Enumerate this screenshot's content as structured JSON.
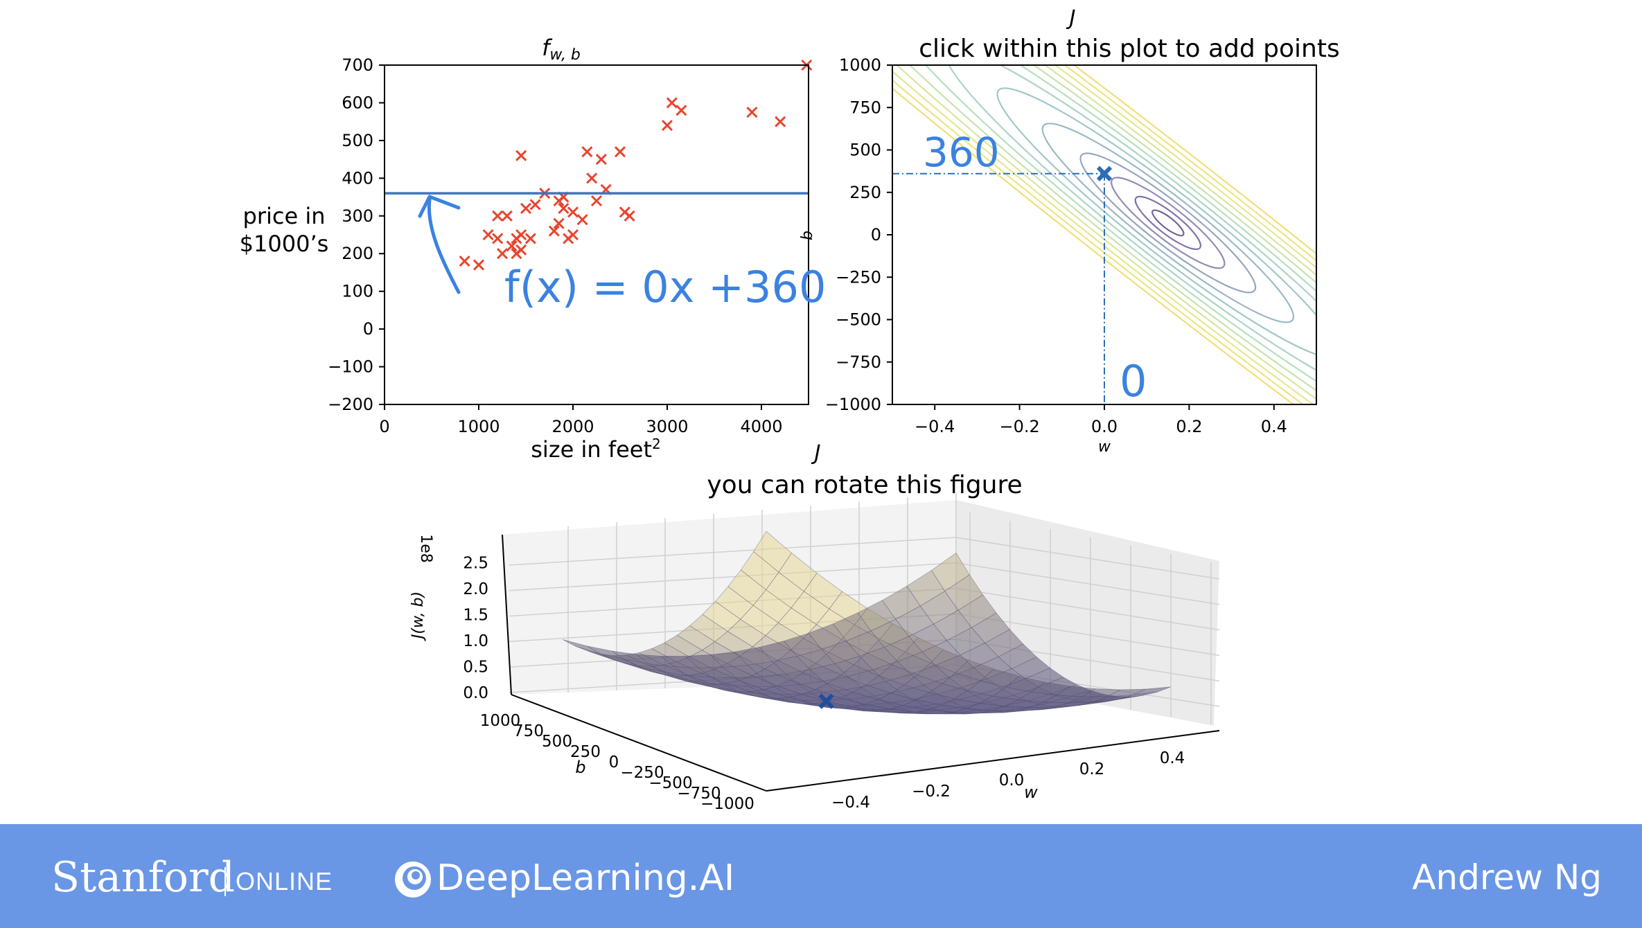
{
  "chart_data": [
    {
      "type": "scatter",
      "title": "f_{w,b}",
      "title_main": "f",
      "title_sub": "w, b",
      "xlabel": "size in feet",
      "xlabel_sup": "2",
      "ylabel_line1": "price in",
      "ylabel_line2": "$1000’s",
      "xlim": [
        0,
        4500
      ],
      "ylim": [
        -200,
        700
      ],
      "xticks": [
        0,
        1000,
        2000,
        3000,
        4000
      ],
      "yticks": [
        -200,
        -100,
        0,
        100,
        200,
        300,
        400,
        500,
        600,
        700
      ],
      "grid": false,
      "points_color": "#e8452e",
      "line_color": "#3f74c0",
      "x": [
        850,
        1000,
        1100,
        1200,
        1250,
        1200,
        1300,
        1350,
        1400,
        1450,
        1400,
        1450,
        1500,
        1550,
        1600,
        1450,
        1700,
        1800,
        1850,
        1900,
        1950,
        2000,
        1900,
        1850,
        2100,
        2000,
        2150,
        2250,
        2300,
        2200,
        2350,
        2500,
        2550,
        2600,
        3000,
        3050,
        3150,
        3900,
        4200,
        4480
      ],
      "y": [
        180,
        170,
        250,
        240,
        200,
        300,
        300,
        220,
        200,
        210,
        240,
        250,
        320,
        240,
        330,
        460,
        360,
        260,
        280,
        320,
        240,
        250,
        350,
        340,
        290,
        310,
        470,
        340,
        450,
        400,
        370,
        470,
        310,
        300,
        540,
        600,
        580,
        575,
        550,
        700
      ],
      "fit_line": {
        "w": 0,
        "b": 360
      },
      "annotation": "f(x) = 0x +360"
    },
    {
      "type": "contour",
      "title": "J",
      "subtitle": "click within this plot to add points",
      "xlabel": "w",
      "ylabel": "b",
      "xlim": [
        -0.5,
        0.5
      ],
      "ylim": [
        -1000,
        1000
      ],
      "xticks": [
        -0.4,
        -0.2,
        0.0,
        0.2,
        0.4
      ],
      "yticks": [
        -1000,
        -750,
        -500,
        -250,
        0,
        250,
        500,
        750,
        1000
      ],
      "xtick_labels": [
        "−0.4",
        "−0.2",
        "0.0",
        "0.2",
        "0.4"
      ],
      "ytick_labels": [
        "−1000",
        "−750",
        "−500",
        "−250",
        "0",
        "250",
        "500",
        "750",
        "1000"
      ],
      "selected_point": {
        "w": 0.0,
        "b": 360
      },
      "annotations": [
        "360",
        "0"
      ],
      "minimum": {
        "w": 0.15,
        "b": 70
      }
    },
    {
      "type": "surface3d",
      "title": "J",
      "subtitle": "you can rotate this figure",
      "zlabel": "J(w, b)",
      "z_multiplier": "1e8",
      "zticks": [
        "0.0",
        "0.5",
        "1.0",
        "1.5",
        "2.0",
        "2.5"
      ],
      "b_axis_label": "b",
      "b_ticks": [
        "1000",
        "750",
        "500",
        "250",
        "0",
        "−250",
        "−500",
        "−750",
        "−1000"
      ],
      "w_axis_label": "w",
      "w_ticks": [
        "−0.4",
        "−0.2",
        "0.0",
        "0.2",
        "0.4"
      ],
      "zlim": [
        0,
        2.5
      ],
      "selected_point": {
        "w": 0.0,
        "b": 360
      }
    }
  ],
  "footer": {
    "stanford": "Stanford",
    "online": "ONLINE",
    "deeplearning": "DeepLearning.AI",
    "author": "Andrew Ng",
    "bg_color": "#6a96e6"
  }
}
